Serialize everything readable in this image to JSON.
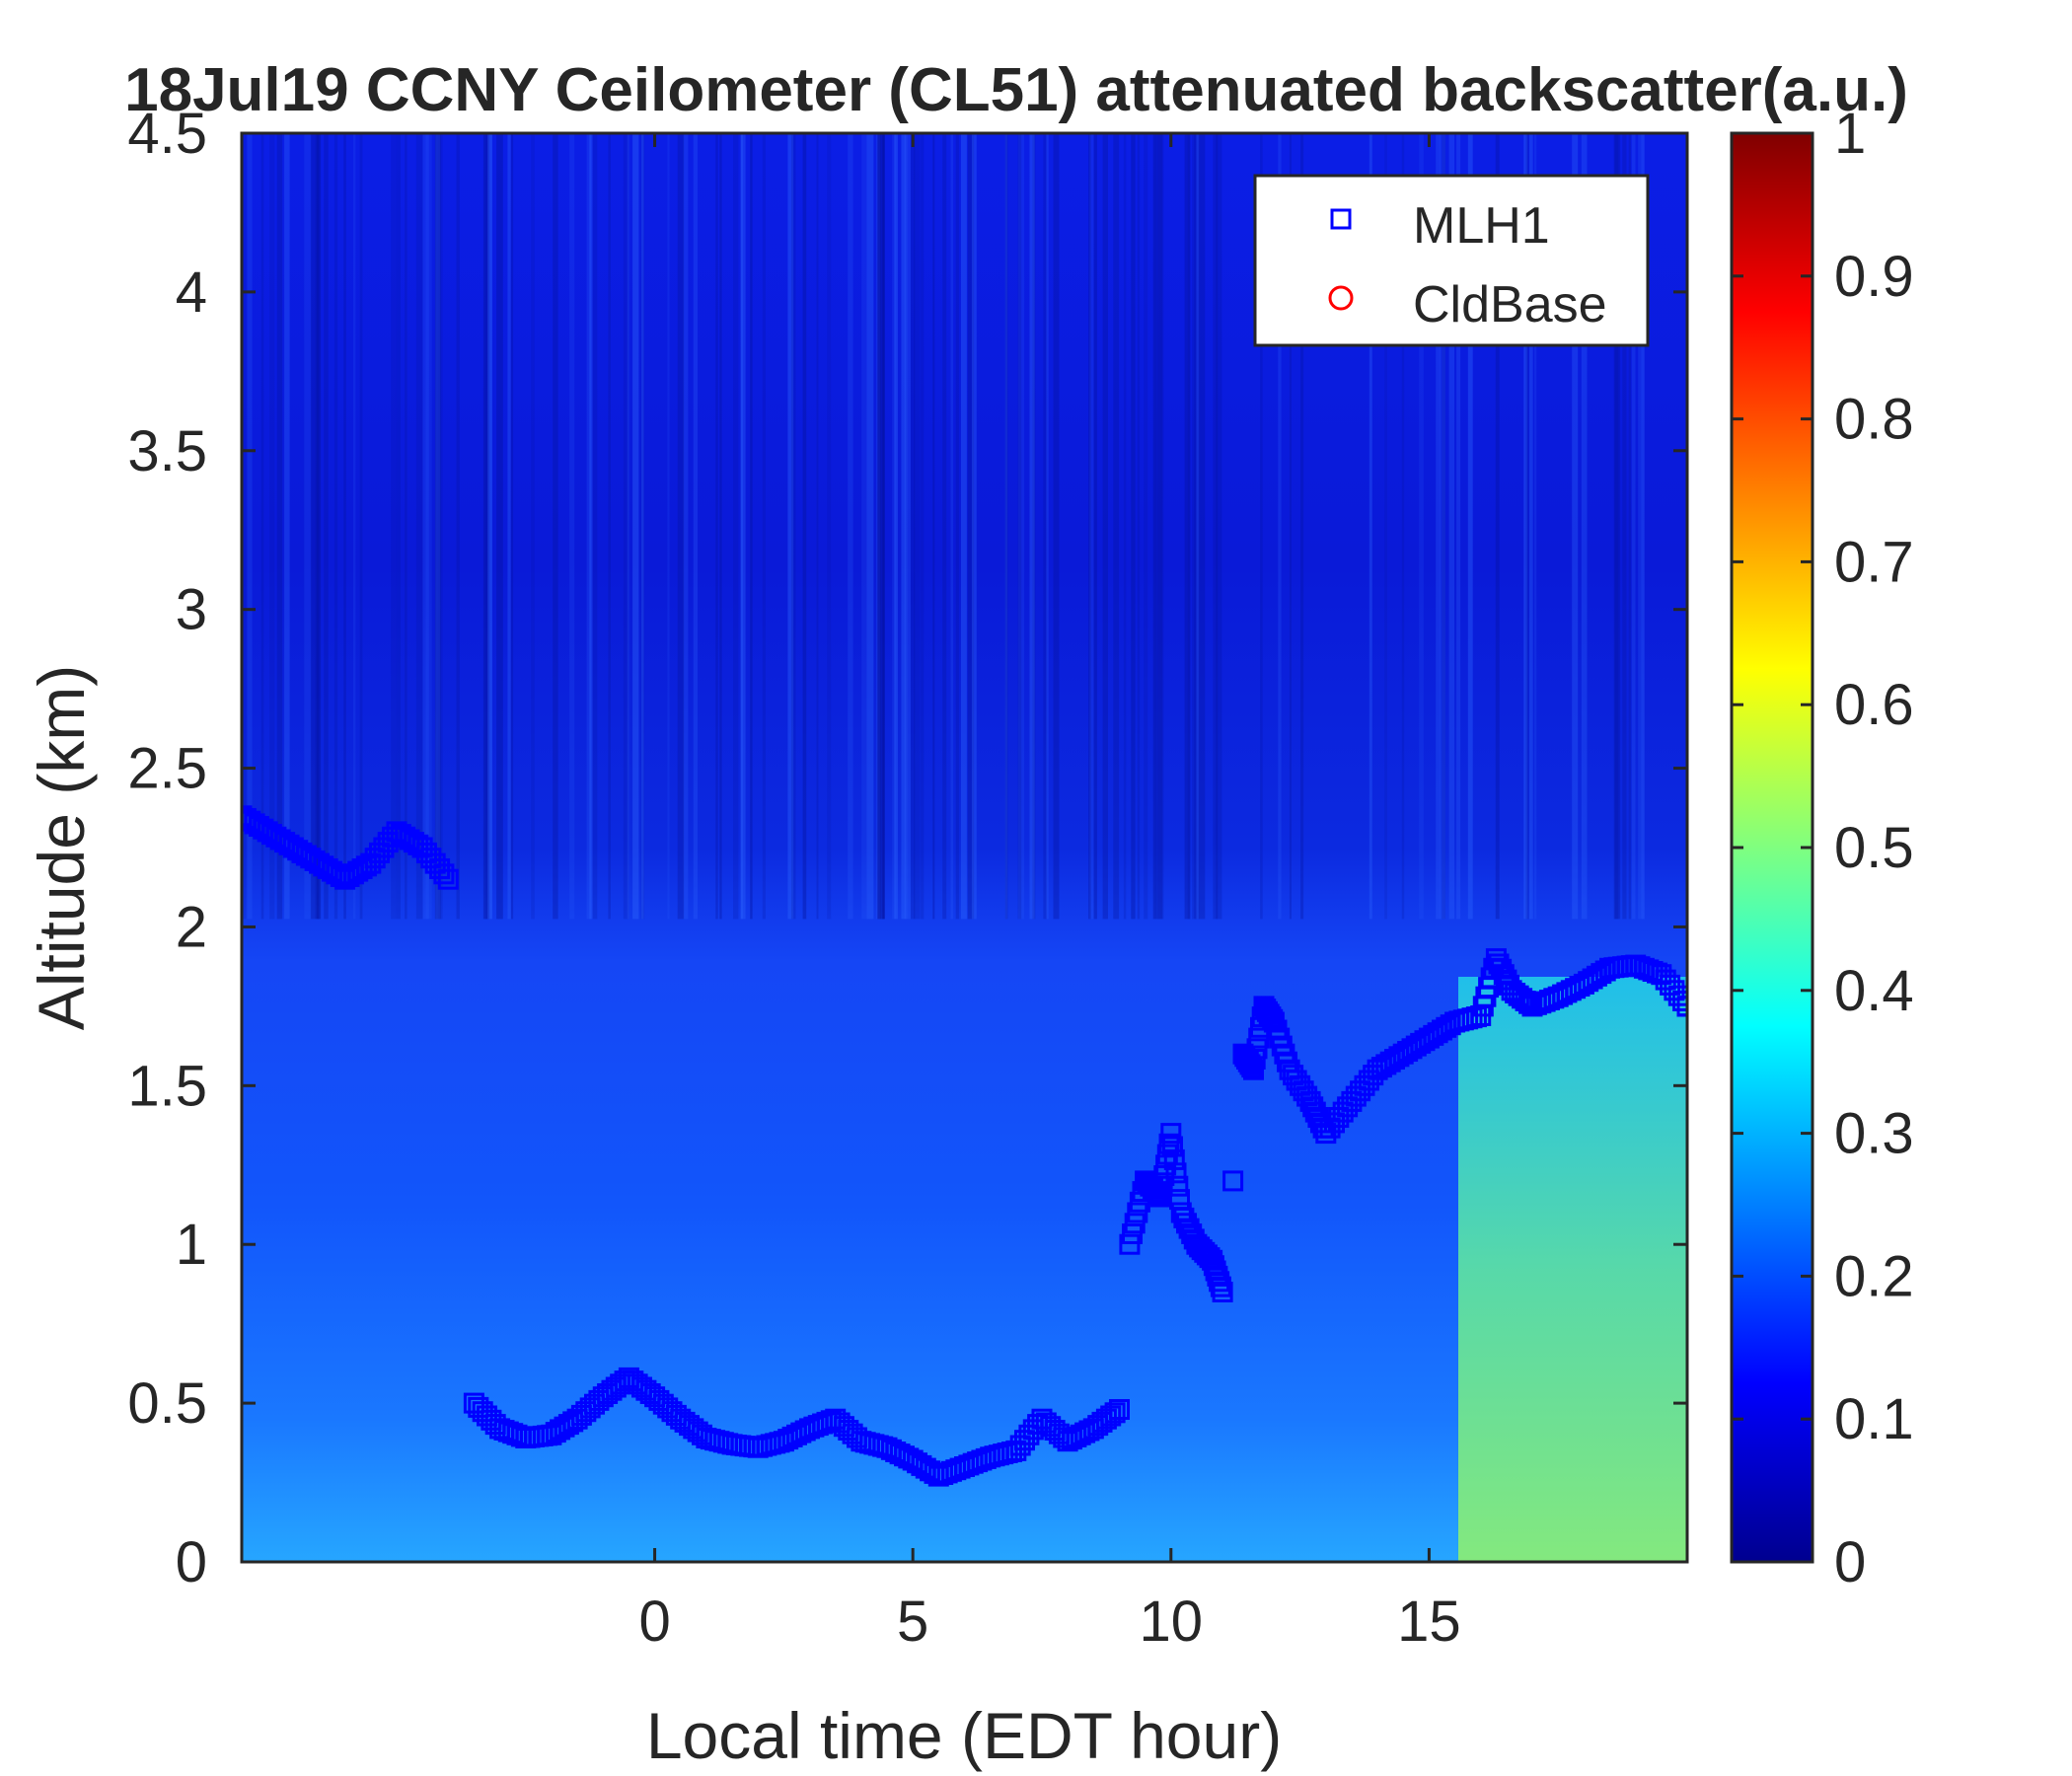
{
  "chart_data": {
    "type": "heatmap",
    "title": "18Jul19 CCNY Ceilometer (CL51) attenuated backscatter(a.u.)",
    "xlabel": "Local time (EDT hour)",
    "ylabel": "Altitude (km)",
    "xlim": [
      -8,
      20
    ],
    "ylim": [
      0,
      4.5
    ],
    "x_ticks": [
      0,
      5,
      10,
      15
    ],
    "x_tick_labels": [
      "0",
      "5",
      "10",
      "15"
    ],
    "y_ticks": [
      0,
      0.5,
      1,
      1.5,
      2,
      2.5,
      3,
      3.5,
      4,
      4.5
    ],
    "y_tick_labels": [
      "0",
      "0.5",
      "1",
      "1.5",
      "2",
      "2.5",
      "3",
      "3.5",
      "4",
      "4.5"
    ],
    "colorbar": {
      "colormap": "jet",
      "clim": [
        0,
        1
      ],
      "ticks": [
        0,
        0.1,
        0.2,
        0.3,
        0.4,
        0.5,
        0.6,
        0.7,
        0.8,
        0.9,
        1
      ],
      "tick_labels": [
        "0",
        "0.1",
        "0.2",
        "0.3",
        "0.4",
        "0.5",
        "0.6",
        "0.7",
        "0.8",
        "0.9",
        "1"
      ]
    },
    "grid": false,
    "legend_position": "top-right",
    "series": [
      {
        "name": "MLH1",
        "marker": "square",
        "color": "#0000ff",
        "x": [
          -8,
          -7.5,
          -7,
          -6.5,
          -6,
          -5.5,
          -5,
          -4.5,
          -4,
          -3.5,
          -3,
          -2.5,
          -2,
          -1.5,
          -1,
          -0.5,
          0,
          0.5,
          1,
          1.5,
          2,
          2.5,
          3,
          3.5,
          4,
          4.5,
          5,
          5.5,
          6,
          6.5,
          7,
          7.5,
          8,
          8.5,
          9,
          9.2,
          9.5,
          9.8,
          10,
          10.2,
          10.5,
          10.8,
          11,
          11.2,
          11.4,
          11.6,
          11.8,
          12,
          12.3,
          12.7,
          13,
          13.5,
          14,
          14.5,
          15,
          15.5,
          16,
          16.3,
          16.6,
          17,
          17.5,
          18,
          18.5,
          19,
          19.5,
          20
        ],
        "y": [
          2.35,
          2.3,
          2.25,
          2.2,
          2.15,
          2.2,
          2.3,
          2.25,
          2.15,
          0.5,
          0.42,
          0.39,
          0.4,
          0.45,
          0.52,
          0.58,
          0.52,
          0.45,
          0.39,
          0.37,
          0.36,
          0.38,
          0.42,
          0.45,
          0.38,
          0.36,
          0.32,
          0.27,
          0.3,
          0.33,
          0.35,
          0.45,
          0.38,
          0.42,
          0.48,
          1.0,
          1.2,
          1.15,
          1.35,
          1.1,
          1.0,
          0.95,
          0.85,
          1.2,
          1.6,
          1.55,
          1.75,
          1.7,
          1.55,
          1.45,
          1.35,
          1.45,
          1.55,
          1.6,
          1.65,
          1.7,
          1.72,
          1.9,
          1.8,
          1.75,
          1.78,
          1.82,
          1.87,
          1.88,
          1.85,
          1.75
        ]
      },
      {
        "name": "CldBase",
        "marker": "circle",
        "color": "#ff0000",
        "x": [],
        "y": []
      }
    ]
  }
}
